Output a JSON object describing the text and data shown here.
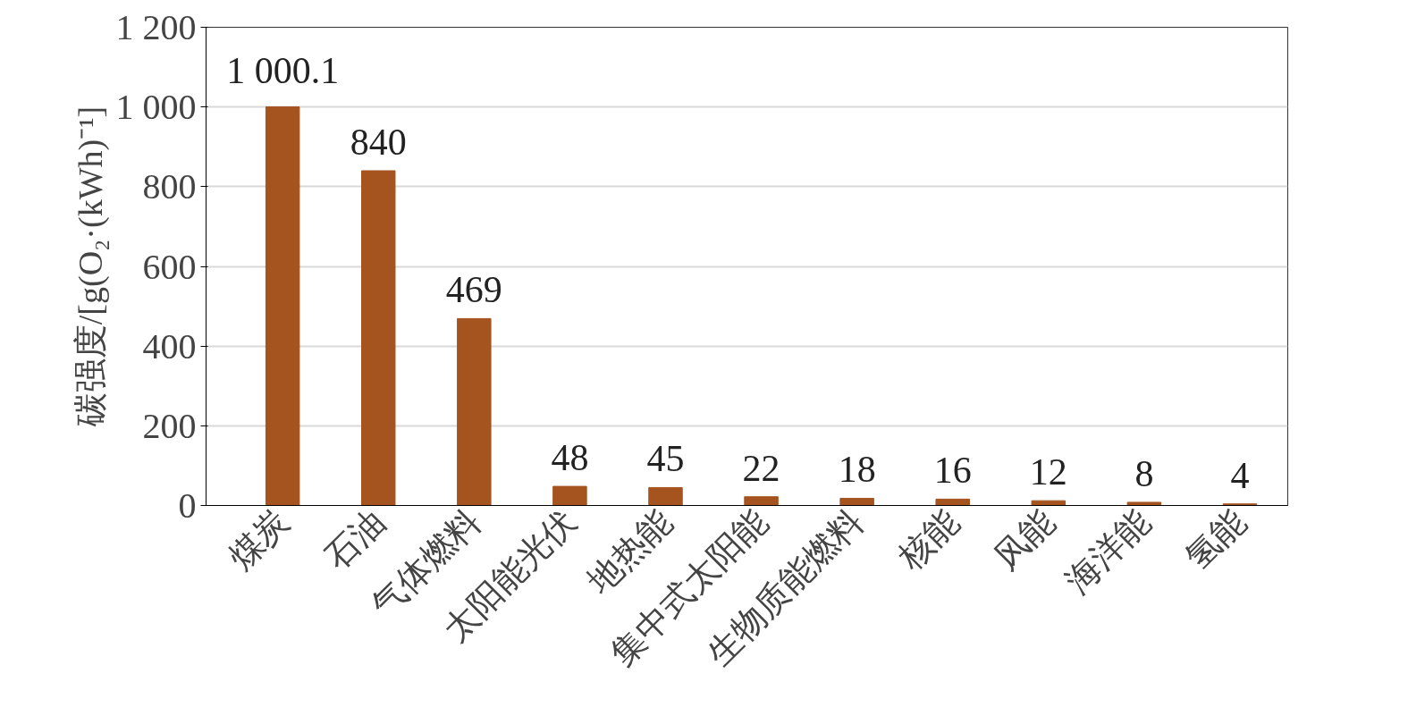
{
  "chart_data": {
    "type": "bar",
    "ylabel": "碳强度/[g(O₂·(kWh)⁻¹]",
    "categories": [
      "煤炭",
      "石油",
      "气体燃料",
      "太阳能光伏",
      "地热能",
      "集中式太阳能",
      "生物质能燃料",
      "核能",
      "风能",
      "海洋能",
      "氢能"
    ],
    "values": [
      1000.1,
      840,
      469,
      48,
      45,
      22,
      18,
      16,
      12,
      8,
      4
    ],
    "value_labels": [
      "1 000.1",
      "840",
      "469",
      "48",
      "45",
      "22",
      "18",
      "16",
      "12",
      "8",
      "4"
    ],
    "color": "#a5531f",
    "ylim": [
      0,
      1200
    ],
    "yticks": [
      0,
      200,
      400,
      600,
      800,
      {
        "value": 1000,
        "label": "1 000"
      },
      {
        "value": 1200,
        "label": "1 200"
      }
    ],
    "grid": "y"
  }
}
